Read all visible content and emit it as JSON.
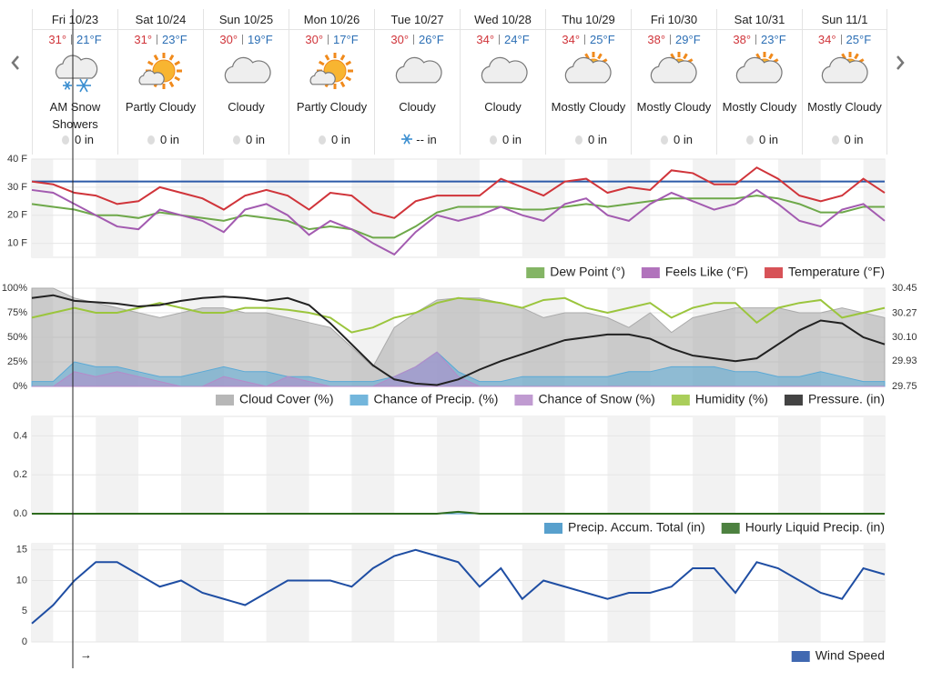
{
  "forecast": {
    "days": [
      {
        "date": "Fri 10/23",
        "high": "31°",
        "low": "21°F",
        "condition": "AM Snow Showers",
        "precip": "0 in",
        "precip_icon": "drop"
      },
      {
        "date": "Sat 10/24",
        "high": "31°",
        "low": "23°F",
        "condition": "Partly Cloudy",
        "precip": "0 in",
        "precip_icon": "drop"
      },
      {
        "date": "Sun 10/25",
        "high": "30°",
        "low": "19°F",
        "condition": "Cloudy",
        "precip": "0 in",
        "precip_icon": "drop"
      },
      {
        "date": "Mon 10/26",
        "high": "30°",
        "low": "17°F",
        "condition": "Partly Cloudy",
        "precip": "0 in",
        "precip_icon": "drop"
      },
      {
        "date": "Tue 10/27",
        "high": "30°",
        "low": "26°F",
        "condition": "Cloudy",
        "precip": "-- in",
        "precip_icon": "snow"
      },
      {
        "date": "Wed 10/28",
        "high": "34°",
        "low": "24°F",
        "condition": "Cloudy",
        "precip": "0 in",
        "precip_icon": "drop"
      },
      {
        "date": "Thu 10/29",
        "high": "34°",
        "low": "25°F",
        "condition": "Mostly Cloudy",
        "precip": "0 in",
        "precip_icon": "drop"
      },
      {
        "date": "Fri 10/30",
        "high": "38°",
        "low": "29°F",
        "condition": "Mostly Cloudy",
        "precip": "0 in",
        "precip_icon": "drop"
      },
      {
        "date": "Sat 10/31",
        "high": "38°",
        "low": "23°F",
        "condition": "Mostly Cloudy",
        "precip": "0 in",
        "precip_icon": "drop"
      },
      {
        "date": "Sun 11/1",
        "high": "34°",
        "low": "25°F",
        "condition": "Mostly Cloudy",
        "precip": "0 in",
        "precip_icon": "drop"
      }
    ]
  },
  "chart_data": [
    {
      "type": "line",
      "categories": [
        null,
        null,
        null,
        null,
        null,
        null,
        null,
        null,
        null,
        null,
        null,
        null,
        null,
        null,
        null,
        null,
        null,
        null,
        null,
        null,
        null,
        null,
        null,
        null,
        null,
        null,
        null,
        null,
        null,
        null,
        null,
        null,
        null,
        null,
        null,
        null,
        null,
        null,
        null,
        null,
        null
      ],
      "ylim": [
        5,
        40
      ],
      "yticks": [
        {
          "value": 10,
          "label": "10 F"
        },
        {
          "value": 20,
          "label": "20 F"
        },
        {
          "value": 30,
          "label": "30 F"
        },
        {
          "value": 40,
          "label": "40 F"
        }
      ],
      "reference_line": 32,
      "reference_color": "#2c5aa8",
      "series": [
        {
          "name": "Dew Point (°)",
          "color": "#6ea84a",
          "style": "line",
          "values": [
            24,
            23,
            22,
            20,
            20,
            19,
            21,
            20,
            19,
            18,
            20,
            19,
            18,
            15,
            16,
            15,
            12,
            12,
            16,
            21,
            23,
            23,
            23,
            22,
            22,
            23,
            24,
            23,
            24,
            25,
            26,
            26,
            26,
            26,
            27,
            26,
            24,
            21,
            21,
            23,
            23
          ]
        },
        {
          "name": "Feels Like (°F)",
          "color": "#a35bb0",
          "style": "line",
          "values": [
            29,
            28,
            24,
            20,
            16,
            15,
            22,
            20,
            18,
            14,
            22,
            24,
            20,
            13,
            18,
            15,
            10,
            6,
            14,
            20,
            18,
            20,
            23,
            20,
            18,
            24,
            26,
            20,
            18,
            24,
            28,
            25,
            22,
            24,
            29,
            24,
            18,
            16,
            22,
            24,
            18
          ]
        },
        {
          "name": "Temperature (°F)",
          "color": "#d0343a",
          "style": "line",
          "values": [
            32,
            31,
            28,
            27,
            24,
            25,
            30,
            28,
            26,
            22,
            27,
            29,
            27,
            22,
            28,
            27,
            21,
            19,
            25,
            27,
            27,
            27,
            33,
            30,
            27,
            32,
            33,
            28,
            30,
            29,
            36,
            35,
            31,
            31,
            37,
            33,
            27,
            25,
            27,
            33,
            28
          ]
        }
      ]
    },
    {
      "type": "line",
      "categories": [
        null,
        null,
        null,
        null,
        null,
        null,
        null,
        null,
        null,
        null,
        null,
        null,
        null,
        null,
        null,
        null,
        null,
        null,
        null,
        null,
        null,
        null,
        null,
        null,
        null,
        null,
        null,
        null,
        null,
        null,
        null,
        null,
        null,
        null,
        null,
        null,
        null,
        null,
        null,
        null,
        null
      ],
      "ylim": [
        0,
        100
      ],
      "yticks": [
        {
          "value": 0,
          "label": "0%"
        },
        {
          "value": 25,
          "label": "25%"
        },
        {
          "value": 50,
          "label": "50%"
        },
        {
          "value": 75,
          "label": "75%"
        },
        {
          "value": 100,
          "label": "100%"
        }
      ],
      "y2lim": [
        29.75,
        30.45
      ],
      "y2ticks": [
        29.75,
        29.93,
        {
          "value": 30.1,
          "label": "30.10"
        },
        30.27,
        30.45
      ],
      "series": [
        {
          "name": "Cloud Cover (%)",
          "color": "#aaaaaa",
          "style": "area",
          "values": [
            100,
            100,
            90,
            85,
            80,
            75,
            70,
            75,
            80,
            80,
            75,
            75,
            70,
            65,
            60,
            40,
            20,
            60,
            75,
            88,
            90,
            90,
            85,
            80,
            70,
            75,
            75,
            70,
            60,
            75,
            55,
            70,
            75,
            80,
            80,
            80,
            75,
            75,
            80,
            75,
            70
          ]
        },
        {
          "name": "Chance of Precip. (%)",
          "color": "#5aa9d6",
          "style": "area",
          "values": [
            5,
            5,
            25,
            20,
            20,
            15,
            10,
            10,
            15,
            20,
            15,
            15,
            10,
            10,
            5,
            5,
            5,
            10,
            20,
            35,
            15,
            5,
            5,
            10,
            10,
            10,
            10,
            10,
            15,
            15,
            20,
            20,
            20,
            15,
            15,
            10,
            10,
            15,
            10,
            5,
            5
          ]
        },
        {
          "name": "Chance of Snow (%)",
          "color": "#b58ac9",
          "style": "area",
          "values": [
            0,
            0,
            15,
            10,
            15,
            10,
            5,
            0,
            0,
            10,
            5,
            0,
            10,
            5,
            0,
            0,
            0,
            10,
            20,
            35,
            10,
            0,
            0,
            0,
            0,
            0,
            0,
            0,
            0,
            0,
            0,
            0,
            0,
            0,
            0,
            0,
            0,
            0,
            0,
            0,
            0
          ]
        },
        {
          "name": "Humidity (%)",
          "color": "#9bc53d",
          "style": "line",
          "values": [
            70,
            75,
            80,
            75,
            75,
            80,
            85,
            80,
            75,
            75,
            80,
            80,
            78,
            75,
            70,
            55,
            60,
            70,
            75,
            85,
            90,
            88,
            85,
            80,
            88,
            90,
            80,
            75,
            80,
            85,
            70,
            80,
            85,
            85,
            65,
            80,
            85,
            88,
            70,
            75,
            80
          ]
        },
        {
          "name": "Pressure. (in)",
          "color": "#222222",
          "style": "line",
          "axis": "y2",
          "values": [
            30.38,
            30.4,
            30.36,
            30.35,
            30.34,
            30.32,
            30.33,
            30.36,
            30.38,
            30.39,
            30.38,
            30.36,
            30.38,
            30.33,
            30.2,
            30.05,
            29.9,
            29.8,
            29.77,
            29.76,
            29.8,
            29.87,
            29.93,
            29.98,
            30.03,
            30.08,
            30.1,
            30.12,
            30.12,
            30.09,
            30.02,
            29.97,
            29.95,
            29.93,
            29.95,
            30.05,
            30.15,
            30.22,
            30.2,
            30.1,
            30.05
          ]
        }
      ]
    },
    {
      "type": "line",
      "categories": [
        null,
        null,
        null,
        null,
        null,
        null,
        null,
        null,
        null,
        null,
        null,
        null,
        null,
        null,
        null,
        null,
        null,
        null,
        null,
        null,
        null,
        null,
        null,
        null,
        null,
        null,
        null,
        null,
        null,
        null,
        null,
        null,
        null,
        null,
        null,
        null,
        null,
        null,
        null,
        null,
        null
      ],
      "ylim": [
        0,
        0.5
      ],
      "yticks": [
        {
          "value": 0,
          "label": "0.0"
        },
        0.2,
        0.4
      ],
      "series": [
        {
          "name": "Precip. Accum. Total (in)",
          "color": "#3b8fc4",
          "style": "area",
          "values": [
            0,
            0,
            0,
            0,
            0,
            0,
            0,
            0,
            0,
            0,
            0,
            0,
            0,
            0,
            0,
            0,
            0,
            0,
            0,
            0,
            0,
            0,
            0,
            0,
            0,
            0,
            0,
            0,
            0,
            0,
            0,
            0,
            0,
            0,
            0,
            0,
            0,
            0,
            0,
            0,
            0
          ]
        },
        {
          "name": "Hourly Liquid Precip. (in)",
          "color": "#2e6b1e",
          "style": "line",
          "values": [
            0,
            0,
            0,
            0,
            0,
            0,
            0,
            0,
            0,
            0,
            0,
            0,
            0,
            0,
            0,
            0,
            0,
            0,
            0,
            0,
            0.01,
            0,
            0,
            0,
            0,
            0,
            0,
            0,
            0,
            0,
            0,
            0,
            0,
            0,
            0,
            0,
            0,
            0,
            0,
            0,
            0
          ]
        }
      ]
    },
    {
      "type": "line",
      "categories": [
        null,
        null,
        null,
        null,
        null,
        null,
        null,
        null,
        null,
        null,
        null,
        null,
        null,
        null,
        null,
        null,
        null,
        null,
        null,
        null,
        null,
        null,
        null,
        null,
        null,
        null,
        null,
        null,
        null,
        null,
        null,
        null,
        null,
        null,
        null,
        null,
        null,
        null,
        null,
        null,
        null
      ],
      "ylim": [
        0,
        16
      ],
      "yticks": [
        0,
        5,
        10,
        15
      ],
      "annotation": "→",
      "series": [
        {
          "name": "Wind Speed",
          "color": "#1f4ea3",
          "style": "line",
          "values": [
            3,
            6,
            10,
            13,
            13,
            11,
            9,
            10,
            8,
            7,
            6,
            8,
            10,
            10,
            10,
            9,
            12,
            14,
            15,
            14,
            13,
            9,
            12,
            7,
            10,
            9,
            8,
            7,
            8,
            8,
            9,
            12,
            12,
            8,
            13,
            12,
            10,
            8,
            7,
            12,
            11
          ]
        }
      ]
    }
  ]
}
